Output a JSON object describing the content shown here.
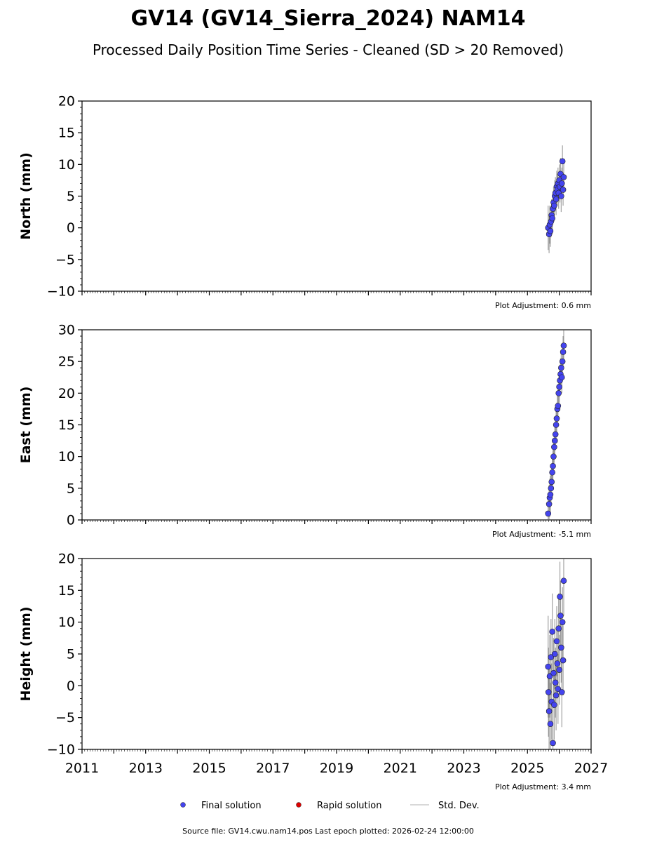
{
  "title": "GV14 (GV14_Sierra_2024) NAM14",
  "subtitle": "Processed Daily Position Time Series - Cleaned (SD > 20 Removed)",
  "footer": "Source file: GV14.cwu.nam14.pos  Last epoch plotted: 2026-02-24 12:00:00",
  "legend": {
    "final": "Final solution",
    "rapid": "Rapid solution",
    "std": "Std. Dev."
  },
  "colors": {
    "final": "#4444ee",
    "rapid": "#dd0000",
    "std": "#555555"
  },
  "chart_data": [
    {
      "type": "scatter",
      "ylabel": "North (mm)",
      "adjustment": "Plot Adjustment: 0.6 mm",
      "xlim": [
        2011,
        2027
      ],
      "ylim": [
        -10,
        20
      ],
      "yticks": [
        -10,
        -5,
        0,
        5,
        10,
        15,
        20
      ],
      "series": [
        {
          "kind": "final",
          "x": [
            2025.65,
            2025.68,
            2025.7,
            2025.72,
            2025.74,
            2025.76,
            2025.78,
            2025.8,
            2025.82,
            2025.84,
            2025.86,
            2025.88,
            2025.9,
            2025.92,
            2025.94,
            2025.96,
            2025.98,
            2026.0,
            2026.02,
            2026.04,
            2026.06,
            2026.08,
            2026.1,
            2026.12,
            2026.14
          ],
          "y": [
            0.0,
            -1.0,
            0.5,
            -0.5,
            1.0,
            2.0,
            1.5,
            3.0,
            4.0,
            3.5,
            5.0,
            5.5,
            4.5,
            6.5,
            6.0,
            7.0,
            5.5,
            7.5,
            6.5,
            8.5,
            5.0,
            7.0,
            10.5,
            6.0,
            8.0
          ],
          "sd": [
            3.5,
            3.0,
            3.0,
            2.5,
            2.5,
            2.5,
            2.5,
            2.5,
            2.5,
            2.5,
            2.5,
            2.5,
            2.5,
            2.5,
            2.5,
            2.5,
            2.5,
            2.5,
            2.5,
            2.5,
            2.5,
            2.5,
            2.5,
            2.5,
            2.5
          ]
        }
      ]
    },
    {
      "type": "scatter",
      "ylabel": "East (mm)",
      "adjustment": "Plot Adjustment: -5.1 mm",
      "xlim": [
        2011,
        2027
      ],
      "ylim": [
        0,
        30
      ],
      "yticks": [
        0,
        5,
        10,
        15,
        20,
        25,
        30
      ],
      "series": [
        {
          "kind": "final",
          "x": [
            2025.65,
            2025.68,
            2025.7,
            2025.72,
            2025.74,
            2025.76,
            2025.78,
            2025.8,
            2025.82,
            2025.84,
            2025.86,
            2025.88,
            2025.9,
            2025.92,
            2025.94,
            2025.96,
            2025.98,
            2026.0,
            2026.02,
            2026.04,
            2026.06,
            2026.08,
            2026.1,
            2026.12,
            2026.14
          ],
          "y": [
            1.0,
            2.5,
            3.5,
            4.0,
            5.0,
            6.0,
            7.5,
            8.5,
            10.0,
            11.5,
            12.5,
            13.5,
            15.0,
            16.0,
            17.5,
            18.0,
            20.0,
            21.0,
            22.0,
            23.0,
            24.0,
            22.5,
            25.0,
            26.5,
            27.5
          ],
          "sd": [
            3.0,
            3.0,
            3.0,
            3.0,
            2.5,
            2.5,
            2.5,
            2.5,
            2.5,
            2.5,
            2.5,
            2.5,
            2.5,
            2.5,
            2.5,
            2.5,
            2.5,
            2.5,
            2.5,
            2.5,
            2.5,
            2.5,
            2.5,
            2.5,
            2.5
          ]
        }
      ]
    },
    {
      "type": "scatter",
      "ylabel": "Height (mm)",
      "adjustment": "Plot Adjustment: 3.4 mm",
      "xlim": [
        2011,
        2027
      ],
      "ylim": [
        -10,
        20
      ],
      "yticks": [
        -10,
        -5,
        0,
        5,
        10,
        15,
        20
      ],
      "xticks": [
        2011,
        2013,
        2015,
        2017,
        2019,
        2021,
        2023,
        2025,
        2027
      ],
      "series": [
        {
          "kind": "final",
          "x": [
            2025.65,
            2025.66,
            2025.68,
            2025.7,
            2025.72,
            2025.74,
            2025.76,
            2025.78,
            2025.8,
            2025.82,
            2025.84,
            2025.86,
            2025.88,
            2025.9,
            2025.92,
            2025.94,
            2025.96,
            2025.98,
            2026.0,
            2026.02,
            2026.04,
            2026.06,
            2026.08,
            2026.1,
            2026.12,
            2026.14
          ],
          "y": [
            3.0,
            -1.0,
            -4.0,
            1.5,
            -6.0,
            4.5,
            -2.5,
            8.5,
            -9.0,
            2.0,
            -3.0,
            5.0,
            0.5,
            -1.5,
            7.0,
            3.5,
            -0.5,
            9.0,
            2.5,
            14.0,
            11.0,
            6.0,
            -1.0,
            10.0,
            4.0,
            16.5
          ],
          "sd": [
            8.0,
            7.0,
            7.0,
            6.5,
            6.5,
            6.0,
            6.0,
            6.0,
            6.0,
            5.5,
            5.5,
            5.5,
            5.5,
            5.5,
            5.5,
            5.5,
            5.5,
            5.5,
            5.5,
            5.5,
            5.5,
            5.5,
            5.5,
            5.5,
            5.5,
            5.5
          ]
        }
      ]
    }
  ]
}
